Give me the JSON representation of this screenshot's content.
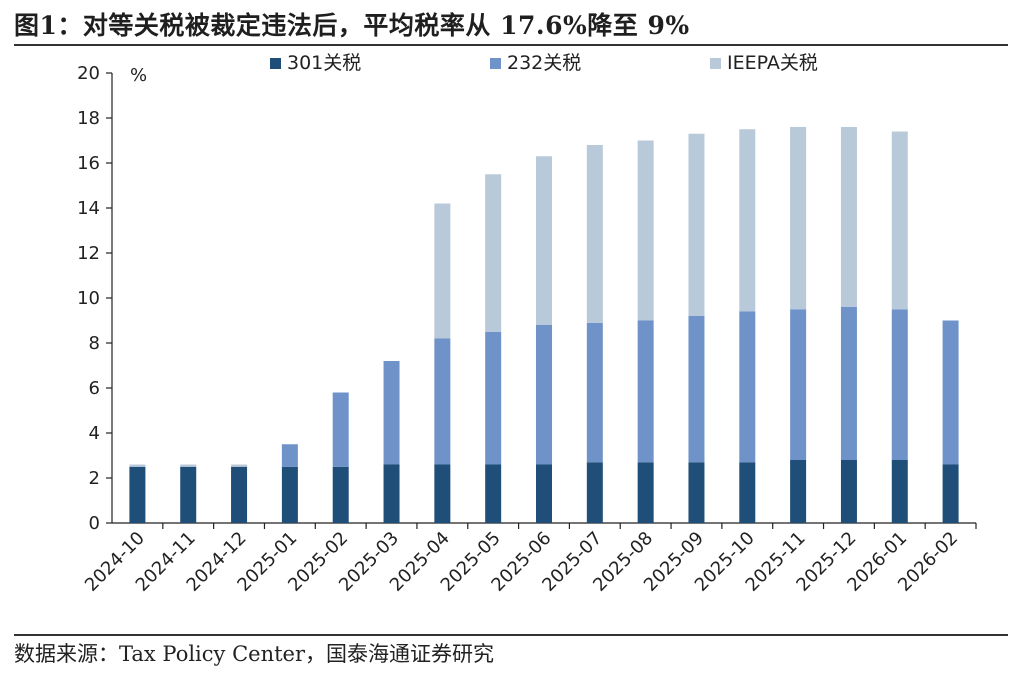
{
  "header": {
    "title": "图1：对等关税被裁定违法后，平均税率从 17.6%降至 9%"
  },
  "footer": {
    "source": "数据来源：Tax Policy Center，国泰海通证券研究"
  },
  "chart_data": {
    "type": "bar",
    "stacked": true,
    "categories": [
      "2024-10",
      "2024-11",
      "2024-12",
      "2025-01",
      "2025-02",
      "2025-03",
      "2025-04",
      "2025-05",
      "2025-06",
      "2025-07",
      "2025-08",
      "2025-09",
      "2025-10",
      "2025-11",
      "2025-12",
      "2026-01",
      "2026-02"
    ],
    "series": [
      {
        "name": "301关税",
        "color": "#1f4e79",
        "values": [
          2.5,
          2.5,
          2.5,
          2.5,
          2.5,
          2.6,
          2.6,
          2.6,
          2.6,
          2.7,
          2.7,
          2.7,
          2.7,
          2.8,
          2.8,
          2.8,
          2.6
        ]
      },
      {
        "name": "232关税",
        "color": "#6f93c9",
        "values": [
          0.0,
          0.0,
          0.0,
          1.0,
          3.3,
          4.6,
          5.6,
          5.9,
          6.2,
          6.2,
          6.3,
          6.5,
          6.7,
          6.7,
          6.8,
          6.7,
          6.4
        ]
      },
      {
        "name": "IEEPA关税",
        "color": "#b8c9da",
        "values": [
          0.1,
          0.1,
          0.1,
          0.0,
          0.0,
          0.0,
          6.0,
          7.0,
          7.5,
          7.9,
          8.0,
          8.1,
          8.1,
          8.1,
          8.0,
          7.9,
          0.0
        ]
      }
    ],
    "ylim": [
      0,
      20
    ],
    "yticks": [
      0,
      2,
      4,
      6,
      8,
      10,
      12,
      14,
      16,
      18,
      20
    ],
    "yunit": "%",
    "grid": false,
    "legend_position": "top"
  }
}
